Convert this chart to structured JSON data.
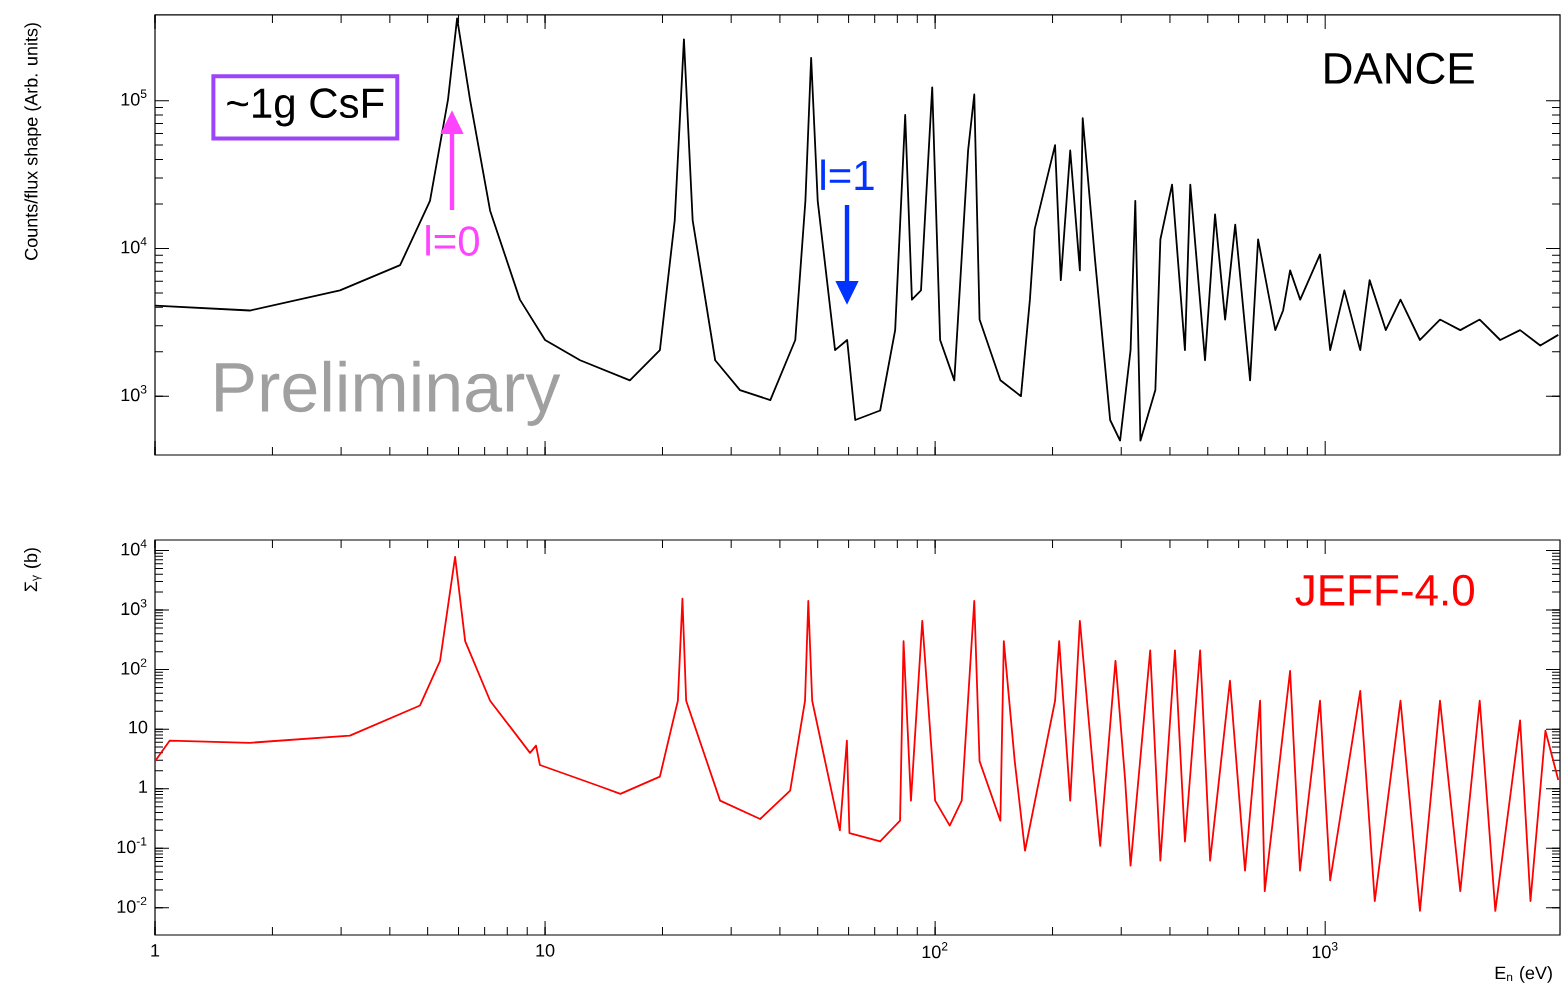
{
  "chart_data": [
    {
      "type": "line",
      "log": "xy",
      "xlim": [
        1,
        4000
      ],
      "ylim": [
        400,
        380000
      ],
      "tick_labels": "y",
      "ylabel": "Counts/flux shape (Arb. units)",
      "xticks": [
        {
          "value": 1,
          "label": null
        },
        {
          "value": 10,
          "label": null
        },
        {
          "value": 100,
          "label": null
        },
        {
          "value": 1000,
          "label": null
        }
      ],
      "yticks": [
        {
          "value": 1000,
          "label": "10$^{3}$"
        },
        {
          "value": 10000,
          "label": "10$^{4}$"
        },
        {
          "value": 100000,
          "label": "10$^{5}$"
        }
      ],
      "annotations": [
        "~1g CsF",
        "Preliminary",
        "l=0",
        "l=1"
      ],
      "x": [
        1,
        1.75,
        2.98,
        4.25,
        5.07,
        5.64,
        5.95,
        6.42,
        7.23,
        8.62,
        10,
        12.3,
        16.5,
        19.7,
        21.5,
        22.7,
        23.9,
        27.3,
        31.6,
        37.8,
        43.8,
        46.5,
        48.1,
        50,
        55.4,
        59.5,
        62.4,
        72.3,
        79,
        83.8,
        87.2,
        92,
        98.3,
        103,
        112,
        121.5,
        126,
        130,
        147,
        166,
        175,
        180,
        203,
        210,
        222,
        235,
        239,
        257,
        281,
        298,
        317,
        326,
        336,
        367,
        378,
        405,
        437,
        451,
        492,
        522,
        554,
        588,
        642,
        673,
        745,
        780,
        813,
        863,
        970,
        1030,
        1120,
        1230,
        1300,
        1430,
        1560,
        1750,
        1970,
        2220,
        2490,
        2810,
        3160,
        3560,
        3960
      ],
      "series": [
        {
          "name": "DANCE",
          "color": "#000000",
          "values": [
            4100,
            3800,
            5200,
            7700,
            21000,
            102000,
            360000,
            102000,
            18000,
            4500,
            2400,
            1750,
            1280,
            2050,
            15500,
            260000,
            15500,
            1750,
            1100,
            940,
            2400,
            21000,
            195000,
            21000,
            2050,
            2400,
            690,
            800,
            2800,
            80000,
            4500,
            5200,
            123000,
            2400,
            1280,
            46000,
            110000,
            3300,
            1280,
            1000,
            4500,
            13500,
            50000,
            6100,
            46000,
            7100,
            76000,
            8400,
            690,
            500,
            2050,
            21000,
            500,
            1100,
            11500,
            27000,
            2050,
            27000,
            1750,
            17000,
            3300,
            14500,
            1280,
            11500,
            2800,
            3800,
            7100,
            4500,
            9100,
            2050,
            5200,
            2050,
            6100,
            2800,
            4500,
            2400,
            3300,
            2800,
            3300,
            2400,
            2800,
            2200,
            2600
          ]
        }
      ]
    },
    {
      "type": "line",
      "log": "xy",
      "xlim": [
        1,
        4000
      ],
      "ylim": [
        0.0035,
        15000
      ],
      "xlabel": "E$_{n}$ (eV)",
      "ylabel": "Σ$_{γ}$ (b)",
      "xticks": [
        1,
        10,
        {
          "value": 100,
          "label": "10$^{2}$"
        },
        {
          "value": 1000,
          "label": "10$^{3}$"
        }
      ],
      "yticks": [
        {
          "value": 0.01,
          "label": "10$^{-2}$"
        },
        {
          "value": 0.1,
          "label": "10$^{-1}$"
        },
        1,
        10,
        {
          "value": 100,
          "label": "10$^{2}$"
        },
        {
          "value": 1000,
          "label": "10$^{3}$"
        },
        {
          "value": 10000,
          "label": "10$^{4}$"
        }
      ],
      "x": [
        1,
        1.09,
        1.75,
        3.16,
        4.78,
        5.38,
        5.88,
        6.24,
        7.23,
        9.15,
        9.48,
        9.7,
        13.8,
        15.6,
        19.7,
        21.9,
        22.5,
        23,
        28.1,
        35.6,
        42.5,
        46.4,
        47.3,
        48.4,
        57,
        59.4,
        60.3,
        72.3,
        81.3,
        83,
        86.7,
        92.7,
        100,
        109,
        117,
        126,
        130,
        147,
        150,
        160,
        170,
        203,
        208,
        222,
        235,
        253,
        265,
        290,
        307,
        317,
        356,
        378,
        412,
        437,
        478,
        507,
        570,
        623,
        681,
        700,
        813,
        862,
        970,
        1030,
        1230,
        1340,
        1560,
        1750,
        1970,
        2220,
        2490,
        2730,
        3160,
        3360,
        3670,
        3960
      ],
      "series": [
        {
          "name": "JEFF-4.0",
          "color": "#ff0000",
          "values": [
            2.9,
            6.4,
            5.9,
            7.8,
            25,
            140,
            7800,
            300,
            30,
            4.0,
            5.3,
            2.5,
            1.1,
            0.82,
            1.6,
            30,
            1550,
            30,
            0.63,
            0.31,
            0.93,
            30,
            1420,
            30,
            0.2,
            6.4,
            0.18,
            0.13,
            0.29,
            300,
            0.63,
            660,
            0.63,
            0.24,
            0.63,
            1420,
            2.9,
            0.29,
            300,
            2.9,
            0.091,
            30,
            300,
            0.63,
            660,
            2.9,
            0.11,
            140,
            1.4,
            0.051,
            210,
            0.062,
            210,
            0.13,
            210,
            0.062,
            65,
            0.042,
            30,
            0.019,
            95,
            0.042,
            30,
            0.029,
            44,
            0.013,
            30,
            0.0089,
            30,
            0.019,
            30,
            0.0089,
            14,
            0.013,
            9.4,
            1.4
          ]
        }
      ]
    }
  ]
}
